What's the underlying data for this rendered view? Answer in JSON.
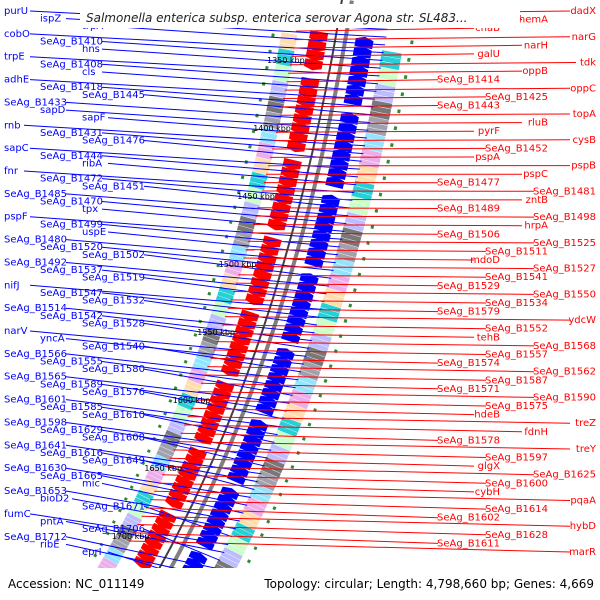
{
  "title": "Salmonella enterica subsp. enterica serovar Agona str. SL483...",
  "footer": {
    "accession": "Accession: NC_011149",
    "summary": "Topology: circular; Length: 4,798,660 bp; Genes: 4,669"
  },
  "colors": {
    "forward": "#0000ff",
    "reverse": "#ff0000",
    "backbone": "#808080",
    "tick": "#2e8b2e",
    "stripes": [
      "#00c8d0",
      "#80e0ff",
      "#b0b0ff",
      "#ffd8a0",
      "#9090a0",
      "#c0ffc0",
      "#e8a0e8",
      "#606060"
    ]
  },
  "kbp_labels": [
    "1350 kbp",
    "1400 kbp",
    "1450 kbp",
    "1500 kbp",
    "1550 kbp",
    "1600 kbp",
    "1650 kbp",
    "1700 kbp"
  ],
  "forward_genes": [
    "purU",
    "ispZ",
    "trpA",
    "cobO",
    "SeAg_B1410",
    "hns",
    "trpE",
    "SeAg_B1408",
    "cls",
    "adhE",
    "SeAg_B1418",
    "SeAg_B1445",
    "SeAg_B1433",
    "sapD",
    "sapF",
    "rnb",
    "SeAg_B1431",
    "SeAg_B1476",
    "sapC",
    "SeAg_B1444",
    "ribA",
    "fnr",
    "SeAg_B1472",
    "SeAg_B1451",
    "SeAg_B1485",
    "SeAg_B1470",
    "tpx",
    "pspF",
    "SeAg_B1499",
    "uspE",
    "SeAg_B1480",
    "SeAg_B1520",
    "SeAg_B1502",
    "SeAg_B1492",
    "SeAg_B1537",
    "SeAg_B1519",
    "nifJ",
    "SeAg_B1547",
    "SeAg_B1532",
    "SeAg_B1514",
    "SeAg_B1542",
    "SeAg_B1528",
    "narV",
    "yncA",
    "SeAg_B1540",
    "SeAg_B1566",
    "SeAg_B1555",
    "SeAg_B1580",
    "SeAg_B1565",
    "SeAg_B1589",
    "SeAg_B1576",
    "SeAg_B1601",
    "SeAg_B1585",
    "SeAg_B1610",
    "SeAg_B1598",
    "SeAg_B1629",
    "SeAg_B1608",
    "SeAg_B1641",
    "SeAg_B1616",
    "SeAg_B1649",
    "SeAg_B1630",
    "SeAg_B1665",
    "mic",
    "SeAg_B1653",
    "bioD2",
    "SeAg_B1671",
    "fumC",
    "pntA",
    "SeAg_B1706",
    "SeAg_B1712",
    "ribE",
    "eprI"
  ],
  "reverse_genes": [
    "dadX",
    "hemA",
    "chaB",
    "narG",
    "narH",
    "galU",
    "tdk",
    "oppB",
    "SeAg_B1414",
    "oppC",
    "SeAg_B1425",
    "SeAg_B1443",
    "topA",
    "rluB",
    "pyrF",
    "cysB",
    "SeAg_B1452",
    "pspA",
    "pspB",
    "pspC",
    "SeAg_B1477",
    "SeAg_B1481",
    "zntB",
    "SeAg_B1489",
    "SeAg_B1498",
    "hrpA",
    "SeAg_B1506",
    "SeAg_B1525",
    "SeAg_B1511",
    "mdoD",
    "SeAg_B1527",
    "SeAg_B1541",
    "SeAg_B1529",
    "SeAg_B1550",
    "SeAg_B1534",
    "SeAg_B1579",
    "ydcW",
    "SeAg_B1552",
    "tehB",
    "SeAg_B1568",
    "SeAg_B1557",
    "SeAg_B1574",
    "SeAg_B1562",
    "SeAg_B1587",
    "SeAg_B1571",
    "SeAg_B1590",
    "SeAg_B1575",
    "hdeB",
    "treZ",
    "fdnH",
    "SeAg_B1578",
    "treY",
    "SeAg_B1597",
    "glgX",
    "SeAg_B1625",
    "SeAg_B1600",
    "cybH",
    "pqaA",
    "SeAg_B1614",
    "SeAg_B1602",
    "hybD",
    "SeAg_B1628",
    "SeAg_B1611",
    "marR"
  ]
}
